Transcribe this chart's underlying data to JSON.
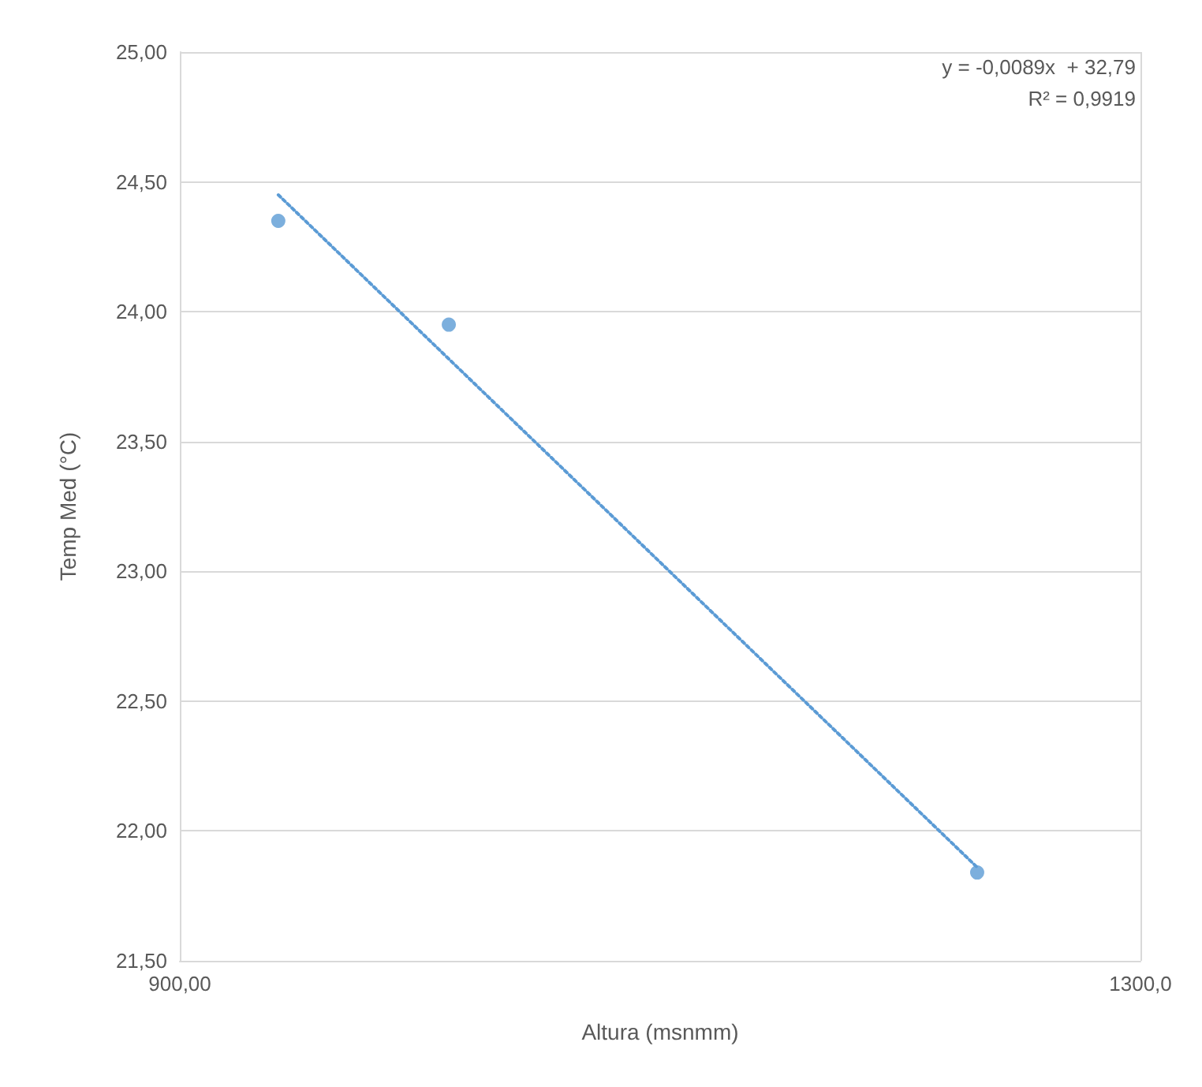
{
  "chart_data": {
    "type": "scatter",
    "xlabel": "Altura (msnmm)",
    "ylabel": "Temp Med (°C)",
    "annotations": [
      "y = -0,0089x  + 32,79",
      "R² = 0,9919"
    ],
    "xlim": [
      900,
      1300
    ],
    "xticks": [
      {
        "value": 900,
        "label": "900,00"
      },
      {
        "value": 1300,
        "label": "1300,0"
      }
    ],
    "ylim": [
      21.5,
      25
    ],
    "yticks": [
      {
        "value": 21.5,
        "label": "21,50"
      },
      {
        "value": 22,
        "label": "22,00"
      },
      {
        "value": 22.5,
        "label": "22,50"
      },
      {
        "value": 23,
        "label": "23,00"
      },
      {
        "value": 23.5,
        "label": "23,50"
      },
      {
        "value": 24,
        "label": "24,00"
      },
      {
        "value": 24.5,
        "label": "24,50"
      },
      {
        "value": 25,
        "label": "25,00"
      }
    ],
    "grid": true,
    "series": [
      {
        "color": "#5b9bd5",
        "marker": "circle",
        "x": [
          941,
          1012,
          1232
        ],
        "values": [
          24.35,
          23.95,
          21.84
        ]
      },
      {
        "type": "line",
        "color": "#5b9bd5",
        "marker": "none",
        "line_style": "dotted",
        "x": [
          941,
          1232
        ],
        "values": [
          24.45,
          21.86
        ]
      }
    ]
  }
}
